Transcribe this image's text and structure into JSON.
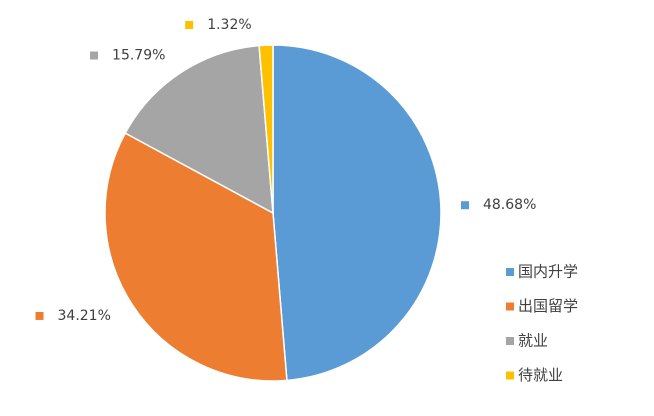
{
  "chart_data": {
    "type": "pie",
    "categories": [
      "国内升学",
      "出国留学",
      "就业",
      "待就业"
    ],
    "values": [
      48.68,
      34.21,
      15.79,
      1.32
    ],
    "value_labels": [
      "48.68%",
      "34.21%",
      "15.79%",
      "1.32%"
    ],
    "colors": [
      "#5b9bd5",
      "#ed7d31",
      "#a5a5a5",
      "#ffc000"
    ],
    "legend": "right"
  }
}
